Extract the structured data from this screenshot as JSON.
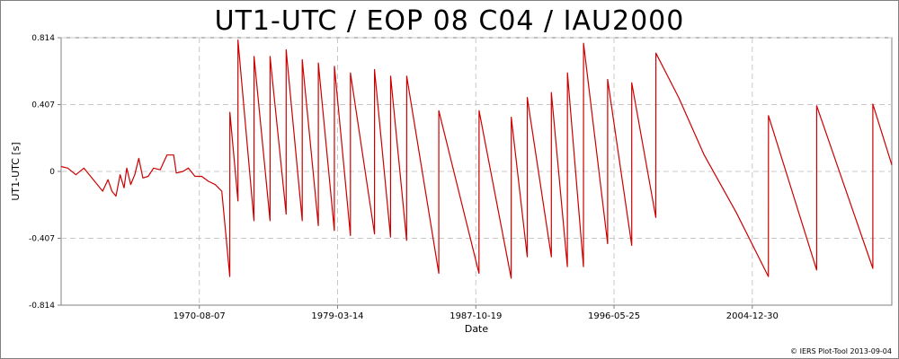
{
  "chart_data": {
    "type": "line",
    "title": "UT1-UTC / EOP 08 C04 / IAU2000",
    "xlabel": "Date",
    "ylabel": "UT1-UTC [s]",
    "x_start": "1962-01-01",
    "x_end": "2013-09-04",
    "ylim": [
      -0.814,
      0.814
    ],
    "yticks": [
      -0.814,
      -0.407,
      0,
      0.407,
      0.814
    ],
    "ytick_labels": [
      "-0.814",
      "-0.407",
      "0",
      "0.407",
      "0.814"
    ],
    "xticks": [
      "1970-08-07",
      "1979-03-14",
      "1987-10-19",
      "1996-05-25",
      "2004-12-30"
    ],
    "grid": true,
    "line_color": "#cc0000",
    "series": [
      {
        "name": "",
        "points": [
          [
            "1962-01-01",
            0.03
          ],
          [
            "1962-06-01",
            0.02
          ],
          [
            "1962-12-01",
            -0.02
          ],
          [
            "1963-06-01",
            0.02
          ],
          [
            "1963-12-01",
            -0.04
          ],
          [
            "1964-04-01",
            -0.08
          ],
          [
            "1964-08-01",
            -0.12
          ],
          [
            "1964-12-01",
            -0.05
          ],
          [
            "1965-03-01",
            -0.12
          ],
          [
            "1965-06-01",
            -0.15
          ],
          [
            "1965-09-01",
            -0.02
          ],
          [
            "1965-12-01",
            -0.1
          ],
          [
            "1966-02-01",
            0.02
          ],
          [
            "1966-05-01",
            -0.08
          ],
          [
            "1966-08-01",
            -0.02
          ],
          [
            "1966-11-01",
            0.08
          ],
          [
            "1967-02-01",
            -0.04
          ],
          [
            "1967-06-01",
            -0.03
          ],
          [
            "1967-10-01",
            0.02
          ],
          [
            "1968-03-01",
            0.01
          ],
          [
            "1968-08-01",
            0.1
          ],
          [
            "1969-01-01",
            0.1
          ],
          [
            "1969-03-01",
            -0.01
          ],
          [
            "1969-08-01",
            0.0
          ],
          [
            "1969-12-01",
            0.02
          ],
          [
            "1970-05-01",
            -0.03
          ],
          [
            "1970-10-01",
            -0.03
          ],
          [
            "1971-03-01",
            -0.06
          ],
          [
            "1971-08-01",
            -0.08
          ],
          [
            "1971-12-31",
            -0.12
          ],
          [
            "1972-06-30",
            -0.64
          ],
          [
            "1972-07-01",
            0.36
          ],
          [
            "1972-12-31",
            -0.18
          ],
          [
            "1973-01-01",
            0.8
          ],
          [
            "1973-12-31",
            -0.3
          ],
          [
            "1974-01-01",
            0.7
          ],
          [
            "1974-12-31",
            -0.3
          ],
          [
            "1975-01-01",
            0.7
          ],
          [
            "1975-12-31",
            -0.26
          ],
          [
            "1976-01-01",
            0.74
          ],
          [
            "1976-12-31",
            -0.3
          ],
          [
            "1977-01-01",
            0.68
          ],
          [
            "1977-12-31",
            -0.33
          ],
          [
            "1978-01-01",
            0.66
          ],
          [
            "1978-12-31",
            -0.36
          ],
          [
            "1979-01-01",
            0.64
          ],
          [
            "1979-12-31",
            -0.39
          ],
          [
            "1980-01-01",
            0.6
          ],
          [
            "1981-06-30",
            -0.38
          ],
          [
            "1981-07-01",
            0.62
          ],
          [
            "1982-06-30",
            -0.4
          ],
          [
            "1982-07-01",
            0.58
          ],
          [
            "1983-06-30",
            -0.42
          ],
          [
            "1983-07-01",
            0.58
          ],
          [
            "1985-06-30",
            -0.62
          ],
          [
            "1985-07-01",
            0.37
          ],
          [
            "1987-12-31",
            -0.62
          ],
          [
            "1988-01-01",
            0.37
          ],
          [
            "1989-12-31",
            -0.65
          ],
          [
            "1990-01-01",
            0.33
          ],
          [
            "1990-12-31",
            -0.52
          ],
          [
            "1991-01-01",
            0.45
          ],
          [
            "1992-06-30",
            -0.52
          ],
          [
            "1992-07-01",
            0.48
          ],
          [
            "1993-06-30",
            -0.58
          ],
          [
            "1993-07-01",
            0.6
          ],
          [
            "1994-06-30",
            -0.58
          ],
          [
            "1994-07-01",
            0.78
          ],
          [
            "1995-12-31",
            -0.44
          ],
          [
            "1996-01-01",
            0.56
          ],
          [
            "1997-06-30",
            -0.45
          ],
          [
            "1997-07-01",
            0.54
          ],
          [
            "1998-12-31",
            -0.28
          ],
          [
            "1999-01-01",
            0.72
          ],
          [
            "2000-06-01",
            0.45
          ],
          [
            "2002-01-01",
            0.1
          ],
          [
            "2004-01-01",
            -0.25
          ],
          [
            "2005-12-31",
            -0.64
          ],
          [
            "2006-01-01",
            0.34
          ],
          [
            "2008-12-31",
            -0.6
          ],
          [
            "2009-01-01",
            0.4
          ],
          [
            "2012-06-30",
            -0.59
          ],
          [
            "2012-07-01",
            0.41
          ],
          [
            "2013-09-04",
            0.04
          ]
        ]
      }
    ]
  },
  "credit": "© IERS Plot-Tool 2013-09-04"
}
